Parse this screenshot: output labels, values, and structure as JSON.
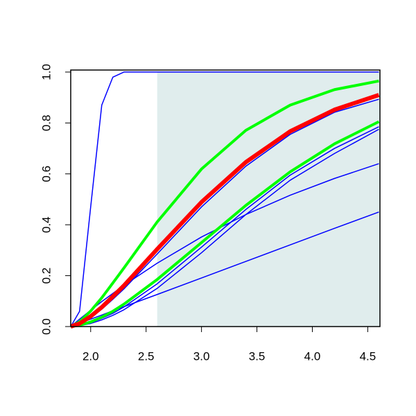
{
  "chart_data": {
    "type": "line",
    "x": [
      1.82,
      1.9,
      2.0,
      2.1,
      2.2,
      2.3,
      2.6,
      3.0,
      3.4,
      3.8,
      4.2,
      4.6
    ],
    "series": [
      {
        "color": "#0000ff",
        "line_width": 1.5,
        "values": [
          0,
          0.06,
          0.47,
          0.87,
          0.98,
          1,
          1,
          1,
          1,
          1,
          1,
          1
        ]
      },
      {
        "color": "#0000ff",
        "line_width": 1.5,
        "values": [
          0,
          0.013,
          0.029,
          0.045,
          0.062,
          0.078,
          0.126,
          0.191,
          0.256,
          0.321,
          0.386,
          0.45
        ]
      },
      {
        "color": "#0000ff",
        "line_width": 1.5,
        "values": [
          0,
          0.029,
          0.064,
          0.098,
          0.13,
          0.162,
          0.249,
          0.352,
          0.44,
          0.516,
          0.582,
          0.64
        ]
      },
      {
        "color": "#0000ff",
        "line_width": 1.5,
        "values": [
          0,
          0.003,
          0.012,
          0.026,
          0.044,
          0.066,
          0.15,
          0.29,
          0.44,
          0.575,
          0.68,
          0.775
        ]
      },
      {
        "color": "#0000ff",
        "line_width": 1.5,
        "values": [
          0,
          0.004,
          0.015,
          0.032,
          0.052,
          0.077,
          0.168,
          0.312,
          0.46,
          0.595,
          0.7,
          0.785
        ]
      },
      {
        "color": "#0000ff",
        "line_width": 1.5,
        "values": [
          0,
          0.01,
          0.035,
          0.068,
          0.107,
          0.148,
          0.285,
          0.47,
          0.63,
          0.755,
          0.842,
          0.893
        ]
      },
      {
        "color": "#00ff00",
        "line_width": 4,
        "values": [
          0,
          0.005,
          0.018,
          0.037,
          0.06,
          0.088,
          0.185,
          0.33,
          0.476,
          0.608,
          0.718,
          0.805
        ]
      },
      {
        "color": "#00ff00",
        "line_width": 4,
        "values": [
          0,
          0.019,
          0.061,
          0.113,
          0.171,
          0.23,
          0.411,
          0.619,
          0.771,
          0.87,
          0.931,
          0.965
        ]
      },
      {
        "color": "#ff0000",
        "line_width": 6,
        "values": [
          0,
          0.012,
          0.04,
          0.076,
          0.118,
          0.161,
          0.304,
          0.489,
          0.646,
          0.767,
          0.852,
          0.91
        ]
      }
    ],
    "shaded_region": {
      "x": [
        2.6,
        4.61
      ],
      "y": [
        0,
        1
      ],
      "color": "#e0eded"
    },
    "xlim": [
      1.82,
      4.61
    ],
    "ylim": [
      0,
      1.008
    ],
    "xticks": [
      {
        "value": 2.0,
        "label": "2.0"
      },
      2.5,
      {
        "value": 3.0,
        "label": "3.0"
      },
      3.5,
      {
        "value": 4.0,
        "label": "4.0"
      },
      4.5
    ],
    "yticks": [
      {
        "value": 0.0,
        "label": "0.0"
      },
      0.2,
      0.4,
      0.6,
      0.8,
      {
        "value": 1.0,
        "label": "1.0"
      }
    ]
  }
}
